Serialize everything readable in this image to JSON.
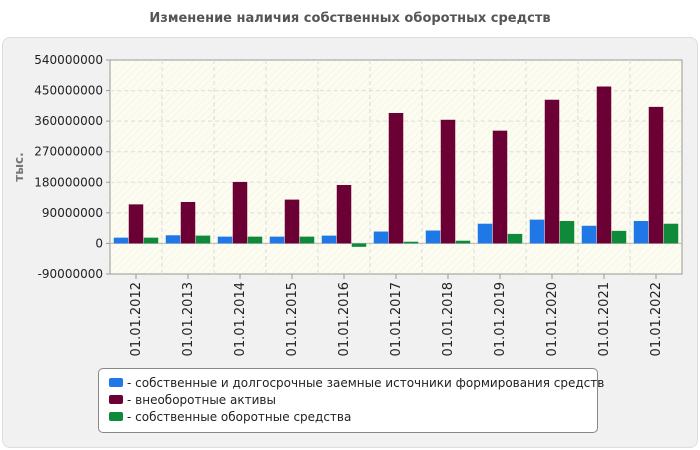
{
  "chart_data": {
    "type": "bar",
    "title": "Изменение наличия собственных оборотных средств",
    "xlabel": "",
    "ylabel": "тыс.",
    "ylim": [
      -90000000,
      540000000
    ],
    "yticks": [
      -90000000,
      0,
      90000000,
      180000000,
      270000000,
      360000000,
      450000000,
      540000000
    ],
    "ytick_labels": [
      "-90000000",
      "0",
      "90000000",
      "180000000",
      "270000000",
      "360000000",
      "450000000",
      "540000000"
    ],
    "grid": true,
    "legend_position": "bottom",
    "categories": [
      "01.01.2012",
      "01.01.2013",
      "01.01.2014",
      "01.01.2015",
      "01.01.2016",
      "01.01.2017",
      "01.01.2018",
      "01.01.2019",
      "01.01.2020",
      "01.01.2021",
      "01.01.2022"
    ],
    "series": [
      {
        "name": "собственные и долгосрочные заемные источники формирования средств",
        "color": "#1f78e6",
        "values": [
          17000000,
          24000000,
          20000000,
          20000000,
          23000000,
          35000000,
          38000000,
          58000000,
          70000000,
          52000000,
          66000000
        ]
      },
      {
        "name": "внеоборотные активы",
        "color": "#6b0035",
        "values": [
          115000000,
          122000000,
          181000000,
          129000000,
          172000000,
          384000000,
          364000000,
          332000000,
          423000000,
          462000000,
          402000000
        ]
      },
      {
        "name": "собственные оборотные средства",
        "color": "#0f8a3a",
        "values": [
          17000000,
          23000000,
          20000000,
          20000000,
          -10000000,
          5000000,
          8000000,
          28000000,
          66000000,
          37000000,
          58000000
        ]
      }
    ]
  }
}
